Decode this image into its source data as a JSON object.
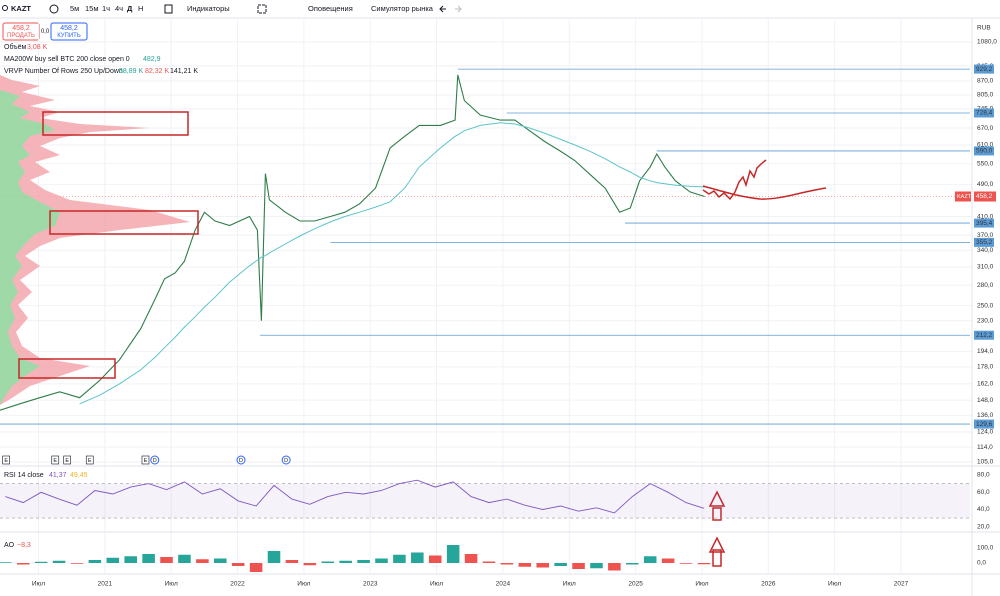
{
  "toolbar": {
    "symbol": "KAZT",
    "intervals": [
      "5м",
      "15м",
      "1ч",
      "4ч",
      "Д",
      "Н"
    ],
    "buttons": [
      "Индикаторы",
      "Оповещения",
      "Симулятор рынка"
    ]
  },
  "trade": {
    "sell_price": "458,2",
    "sell_label": "ПРОДАТЬ",
    "spread": "0,0",
    "buy_price": "458,2",
    "buy_label": "КУПИТЬ"
  },
  "legend": [
    {
      "name": "Объём",
      "values": [
        "3,08 K"
      ]
    },
    {
      "name": "MA200W buy sell BTC 200 close open 0",
      "values": [
        "482,9"
      ]
    },
    {
      "name": "VRVP Number Of Rows 250 Up/Down",
      "values": [
        "58,89 K",
        "82,32 K",
        "141,21 K"
      ]
    }
  ],
  "chart_data": [
    {
      "type": "line",
      "currency": "RUB",
      "log_scale": true,
      "grid": true,
      "xlim": [
        2020.21,
        2027.52
      ],
      "ylim": [
        105,
        1080
      ],
      "xticks": [
        {
          "value": 2020.5,
          "label": "Июл"
        },
        {
          "value": 2021,
          "label": "2021"
        },
        {
          "value": 2021.5,
          "label": "Июл"
        },
        {
          "value": 2022,
          "label": "2022"
        },
        {
          "value": 2022.5,
          "label": "Июл"
        },
        {
          "value": 2023,
          "label": "2023"
        },
        {
          "value": 2023.5,
          "label": "Июл"
        },
        {
          "value": 2024,
          "label": "2024"
        },
        {
          "value": 2024.5,
          "label": "Июл"
        },
        {
          "value": 2025,
          "label": "2025"
        },
        {
          "value": 2025.5,
          "label": "Июл"
        },
        {
          "value": 2026,
          "label": "2026"
        },
        {
          "value": 2026.5,
          "label": "Июл"
        },
        {
          "value": 2027,
          "label": "2027"
        }
      ],
      "yticks": [
        {
          "value": 1080,
          "label": "1080,0"
        },
        {
          "value": 945,
          "label": "945,0"
        },
        {
          "value": 870,
          "label": "870,0"
        },
        {
          "value": 805,
          "label": "805,0"
        },
        {
          "value": 745,
          "label": "745,0"
        },
        {
          "value": 670,
          "label": "670,0"
        },
        {
          "value": 610,
          "label": "610,0"
        },
        {
          "value": 550,
          "label": "550,0"
        },
        {
          "value": 490,
          "label": "490,0"
        },
        {
          "value": 410,
          "label": "410,0"
        },
        {
          "value": 370,
          "label": "370,0"
        },
        {
          "value": 340,
          "label": "340,0"
        },
        {
          "value": 310,
          "label": "310,0"
        },
        {
          "value": 280,
          "label": "280,0"
        },
        {
          "value": 250,
          "label": "250,0"
        },
        {
          "value": 230,
          "label": "230,0"
        },
        {
          "value": 194,
          "label": "194,0"
        },
        {
          "value": 178,
          "label": "178,0"
        },
        {
          "value": 162,
          "label": "162,0"
        },
        {
          "value": 148,
          "label": "148,0"
        },
        {
          "value": 136,
          "label": "136,0"
        },
        {
          "value": 124,
          "label": "124,0"
        },
        {
          "value": 114,
          "label": "114,0"
        },
        {
          "value": 105,
          "label": "105,0"
        }
      ],
      "x": [
        2020.21,
        2020.36,
        2020.51,
        2020.66,
        2020.81,
        2020.96,
        2021.11,
        2021.27,
        2021.38,
        2021.45,
        2021.53,
        2021.6,
        2021.68,
        2021.75,
        2021.83,
        2021.94,
        2022.09,
        2022.15,
        2022.18,
        2022.21,
        2022.24,
        2022.36,
        2022.47,
        2022.58,
        2022.7,
        2022.81,
        2022.92,
        2023.04,
        2023.15,
        2023.26,
        2023.37,
        2023.53,
        2023.64,
        2023.66,
        2023.71,
        2023.83,
        2023.98,
        2024.09,
        2024.2,
        2024.32,
        2024.43,
        2024.54,
        2024.65,
        2024.77,
        2024.88,
        2024.96,
        2025.03,
        2025.11,
        2025.16,
        2025.22,
        2025.3,
        2025.41,
        2025.52
      ],
      "series": [
        {
          "name": "KAZT",
          "color": "#2f7d4a",
          "values": [
            140,
            145,
            150,
            155,
            150,
            165,
            185,
            220,
            260,
            290,
            300,
            320,
            380,
            420,
            400,
            390,
            410,
            380,
            230,
            520,
            450,
            420,
            400,
            400,
            410,
            420,
            440,
            480,
            600,
            640,
            680,
            680,
            700,
            900,
            780,
            720,
            700,
            700,
            660,
            620,
            590,
            560,
            520,
            480,
            420,
            430,
            500,
            540,
            580,
            540,
            500,
            470,
            458.2
          ]
        },
        {
          "name": "MA200W buy sell BTC 200 close open 0",
          "color": "#5cc4c9",
          "values": [
            null,
            null,
            null,
            null,
            145,
            152,
            162,
            175,
            188,
            198,
            210,
            222,
            235,
            248,
            262,
            285,
            312,
            322,
            327,
            330,
            335,
            352,
            368,
            383,
            398,
            410,
            420,
            432,
            445,
            480,
            540,
            600,
            640,
            645,
            660,
            680,
            690,
            685,
            670,
            650,
            630,
            610,
            590,
            565,
            540,
            525,
            510,
            500,
            495,
            492,
            488,
            485,
            482.9
          ]
        }
      ],
      "last_price": {
        "value": 458.2,
        "label": "458,2"
      },
      "levels": [
        {
          "value": 929.2,
          "label": "929,2",
          "from": 2023.66
        },
        {
          "value": 728.4,
          "label": "728,4",
          "from": 2024.03
        },
        {
          "value": 590,
          "label": "590,0",
          "from": 2025.16
        },
        {
          "value": 395.4,
          "label": "395,4",
          "from": 2024.92
        },
        {
          "value": 355.2,
          "label": "355,2",
          "from": 2022.7
        },
        {
          "value": 212.2,
          "label": "212,2",
          "from": 2022.17
        },
        {
          "value": 129.6,
          "label": "129,6",
          "from": 2020.21
        }
      ],
      "events": [
        {
          "label": "E",
          "x": 2020.23
        },
        {
          "label": "E",
          "x": 2020.6
        },
        {
          "label": "E",
          "x": 2020.69
        },
        {
          "label": "E",
          "x": 2020.86
        },
        {
          "label": "E",
          "x": 2021.28
        },
        {
          "label": "D",
          "x": 2021.35
        },
        {
          "label": "D",
          "x": 2022.0
        },
        {
          "label": "D",
          "x": 2022.34
        }
      ]
    },
    {
      "type": "rsi",
      "title": "RSI 14 close",
      "legend_values": [
        "41,37",
        "49,45"
      ],
      "color": "#7e57c2",
      "xlim": [
        2020.21,
        2027.52
      ],
      "ylim": [
        15,
        87
      ],
      "yticks": [
        {
          "value": 80,
          "label": "80,0"
        },
        {
          "value": 60,
          "label": "60,0"
        },
        {
          "value": 40,
          "label": "40,0"
        },
        {
          "value": 20,
          "label": "20,0"
        }
      ],
      "bands": [
        30,
        70
      ],
      "x": [
        2020.25,
        2020.385,
        2020.52,
        2020.655,
        2020.79,
        2020.925,
        2021.06,
        2021.195,
        2021.33,
        2021.465,
        2021.6,
        2021.735,
        2021.87,
        2022.005,
        2022.14,
        2022.275,
        2022.41,
        2022.545,
        2022.68,
        2022.815,
        2022.95,
        2023.085,
        2023.22,
        2023.355,
        2023.49,
        2023.625,
        2023.76,
        2023.895,
        2024.03,
        2024.165,
        2024.3,
        2024.435,
        2024.57,
        2024.705,
        2024.84,
        2024.975,
        2025.11,
        2025.245,
        2025.38,
        2025.515
      ],
      "values": [
        55,
        48,
        60,
        52,
        45,
        62,
        58,
        66,
        70,
        63,
        72,
        58,
        64,
        50,
        44,
        68,
        52,
        46,
        55,
        60,
        58,
        62,
        70,
        74,
        66,
        72,
        55,
        48,
        52,
        45,
        40,
        44,
        38,
        42,
        36,
        55,
        70,
        60,
        48,
        41.37
      ]
    },
    {
      "type": "histogram",
      "title": "AO",
      "legend_values": [
        "−8,3"
      ],
      "colors": [
        "#26a69a",
        "#ef5350"
      ],
      "xlim": [
        2020.21,
        2027.52
      ],
      "ylim": [
        -50,
        200
      ],
      "yticks": [
        {
          "value": 100,
          "label": "100,0"
        },
        {
          "value": 0,
          "label": "0,0"
        }
      ],
      "x": [
        2020.25,
        2020.385,
        2020.52,
        2020.655,
        2020.79,
        2020.925,
        2021.06,
        2021.195,
        2021.33,
        2021.465,
        2021.6,
        2021.735,
        2021.87,
        2022.005,
        2022.14,
        2022.275,
        2022.41,
        2022.545,
        2022.68,
        2022.815,
        2022.95,
        2023.085,
        2023.22,
        2023.355,
        2023.49,
        2023.625,
        2023.76,
        2023.895,
        2024.03,
        2024.165,
        2024.3,
        2024.435,
        2024.57,
        2024.705,
        2024.84,
        2024.975,
        2025.11,
        2025.245,
        2025.38,
        2025.515
      ],
      "values": [
        5,
        -10,
        8,
        15,
        -5,
        20,
        35,
        45,
        60,
        40,
        55,
        25,
        30,
        -20,
        -60,
        80,
        20,
        -15,
        10,
        15,
        20,
        30,
        55,
        70,
        50,
        120,
        60,
        10,
        -10,
        -25,
        -30,
        -20,
        -40,
        -35,
        -50,
        -10,
        45,
        30,
        -5,
        -8.3
      ]
    }
  ]
}
